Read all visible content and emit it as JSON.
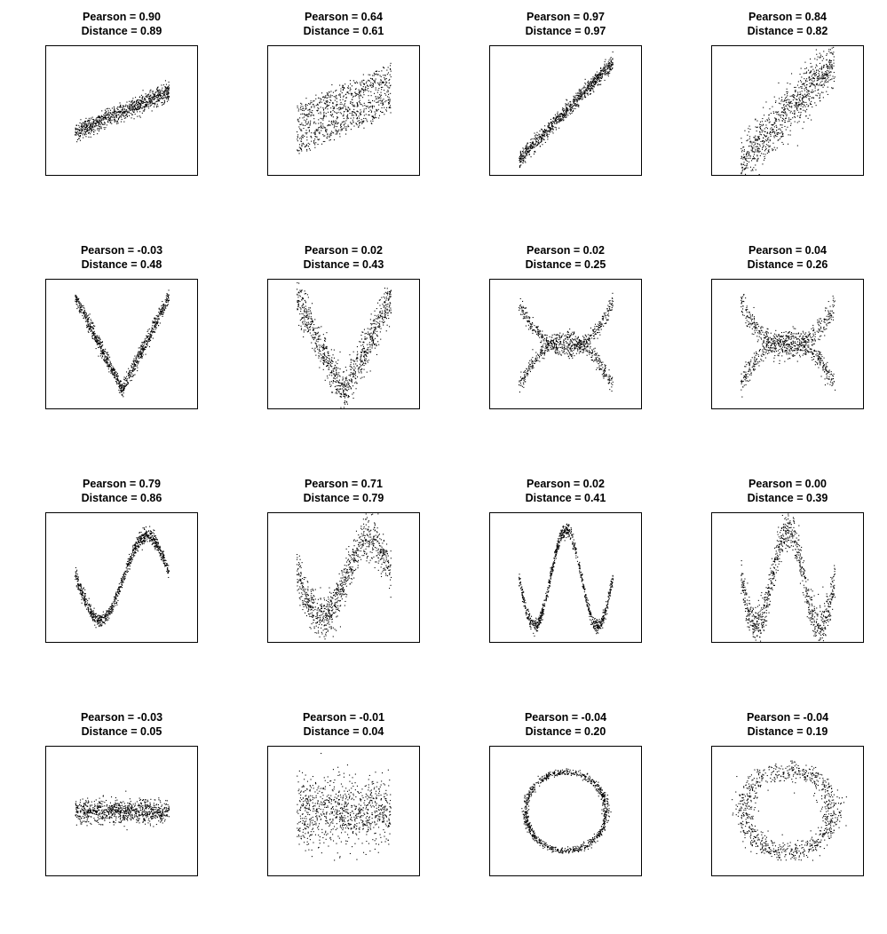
{
  "chart_data": [
    {
      "type": "scatter",
      "shape": "linear",
      "pearson_label": "Pearson = 0.90",
      "distance_label": "Distance = 0.89",
      "pearson": 0.9,
      "distance": 0.89
    },
    {
      "type": "scatter",
      "shape": "linear-bands",
      "pearson_label": "Pearson = 0.64",
      "distance_label": "Distance = 0.61",
      "pearson": 0.64,
      "distance": 0.61
    },
    {
      "type": "scatter",
      "shape": "linear-steep",
      "pearson_label": "Pearson = 0.97",
      "distance_label": "Distance = 0.97",
      "pearson": 0.97,
      "distance": 0.97
    },
    {
      "type": "scatter",
      "shape": "linear-wide",
      "pearson_label": "Pearson = 0.84",
      "distance_label": "Distance = 0.82",
      "pearson": 0.84,
      "distance": 0.82
    },
    {
      "type": "scatter",
      "shape": "v",
      "pearson_label": "Pearson = -0.03",
      "distance_label": "Distance = 0.48",
      "pearson": -0.03,
      "distance": 0.48
    },
    {
      "type": "scatter",
      "shape": "v-wide",
      "pearson_label": "Pearson = 0.02",
      "distance_label": "Distance = 0.43",
      "pearson": 0.02,
      "distance": 0.43
    },
    {
      "type": "scatter",
      "shape": "x-parabola",
      "pearson_label": "Pearson = 0.02",
      "distance_label": "Distance = 0.25",
      "pearson": 0.02,
      "distance": 0.25
    },
    {
      "type": "scatter",
      "shape": "x-parabola-wide",
      "pearson_label": "Pearson = 0.04",
      "distance_label": "Distance = 0.26",
      "pearson": 0.04,
      "distance": 0.26
    },
    {
      "type": "scatter",
      "shape": "sine",
      "pearson_label": "Pearson = 0.79",
      "distance_label": "Distance = 0.86",
      "pearson": 0.79,
      "distance": 0.86
    },
    {
      "type": "scatter",
      "shape": "sine-wide",
      "pearson_label": "Pearson = 0.71",
      "distance_label": "Distance = 0.79",
      "pearson": 0.71,
      "distance": 0.79
    },
    {
      "type": "scatter",
      "shape": "w",
      "pearson_label": "Pearson = 0.02",
      "distance_label": "Distance = 0.41",
      "pearson": 0.02,
      "distance": 0.41
    },
    {
      "type": "scatter",
      "shape": "w-wide",
      "pearson_label": "Pearson = 0.00",
      "distance_label": "Distance = 0.39",
      "pearson": 0.0,
      "distance": 0.39
    },
    {
      "type": "scatter",
      "shape": "flat-band",
      "pearson_label": "Pearson = -0.03",
      "distance_label": "Distance = 0.05",
      "pearson": -0.03,
      "distance": 0.05
    },
    {
      "type": "scatter",
      "shape": "flat-band-wide",
      "pearson_label": "Pearson = -0.01",
      "distance_label": "Distance = 0.04",
      "pearson": -0.01,
      "distance": 0.04
    },
    {
      "type": "scatter",
      "shape": "ring",
      "pearson_label": "Pearson = -0.04",
      "distance_label": "Distance = 0.20",
      "pearson": -0.04,
      "distance": 0.2
    },
    {
      "type": "scatter",
      "shape": "ring-wide",
      "pearson_label": "Pearson = -0.04",
      "distance_label": "Distance = 0.19",
      "pearson": -0.04,
      "distance": 0.19
    }
  ]
}
